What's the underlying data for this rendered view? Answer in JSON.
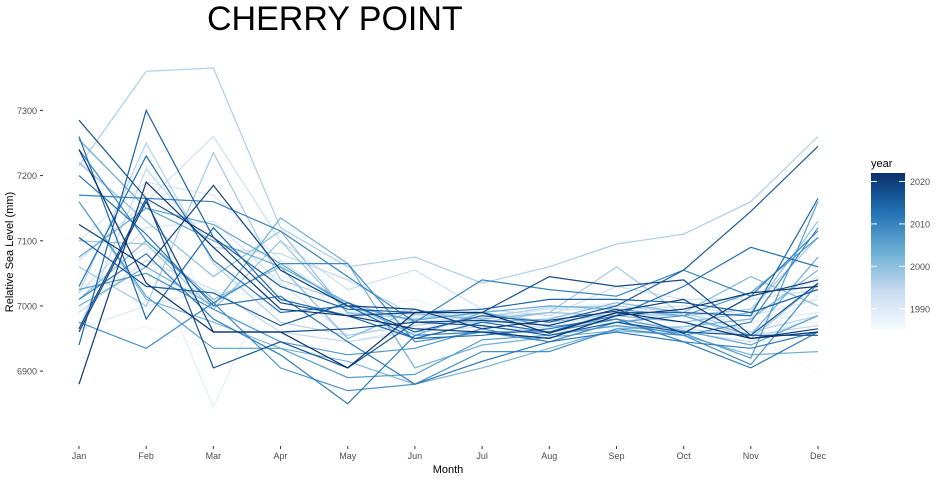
{
  "chart_data": {
    "type": "line",
    "title": "CHERRY POINT",
    "xlabel": "Month",
    "ylabel": "Relative Sea Level (mm)",
    "categories": [
      "Jan",
      "Feb",
      "Mar",
      "Apr",
      "May",
      "Jun",
      "Jul",
      "Aug",
      "Sep",
      "Oct",
      "Nov",
      "Dec"
    ],
    "yticks": [
      6900,
      7000,
      7100,
      7200,
      7300
    ],
    "ylim": [
      6825,
      7385
    ],
    "grid": false,
    "legend": {
      "title": "year",
      "type": "colorbar",
      "position": "right",
      "range": [
        1985,
        2022
      ],
      "ticks": [
        1990,
        2000,
        2010,
        2020
      ],
      "color_low": "#f7fbff",
      "color_high": "#08306b"
    },
    "series": [
      {
        "year": 1986,
        "values": [
          6948,
          6968,
          6932,
          6990,
          6975,
          6985,
          6968,
          6968,
          6975,
          6962,
          6958,
          6895
        ]
      },
      {
        "year": 1987,
        "values": [
          6995,
          7245,
          6958,
          7135,
          6992,
          7010,
          6975,
          6990,
          7000,
          6985,
          6955,
          7005
        ]
      },
      {
        "year": 1988,
        "values": [
          7050,
          7030,
          7025,
          7010,
          6985,
          6975,
          6965,
          6978,
          6985,
          6975,
          6968,
          6975
        ]
      },
      {
        "year": 1989,
        "values": [
          7022,
          7090,
          6845,
          7070,
          6982,
          6995,
          6980,
          6995,
          7005,
          6995,
          6960,
          7015
        ]
      },
      {
        "year": 1990,
        "values": [
          6965,
          7000,
          7025,
          6960,
          6945,
          6965,
          6975,
          6972,
          6985,
          6985,
          6975,
          6990
        ]
      },
      {
        "year": 1991,
        "values": [
          7100,
          7190,
          7170,
          7070,
          7000,
          6960,
          6995,
          6985,
          6975,
          6990,
          6985,
          7045
        ]
      },
      {
        "year": 1992,
        "values": [
          7020,
          7120,
          7130,
          7035,
          6955,
          6975,
          6985,
          6995,
          6995,
          7000,
          6985,
          7010
        ]
      },
      {
        "year": 1993,
        "values": [
          7070,
          7160,
          7260,
          7100,
          7025,
          7055,
          6995,
          6985,
          7030,
          7010,
          7010,
          7025
        ]
      },
      {
        "year": 1994,
        "values": [
          6990,
          7070,
          7025,
          6960,
          6945,
          6960,
          6968,
          6960,
          6968,
          6960,
          6945,
          6985
        ]
      },
      {
        "year": 1995,
        "values": [
          6965,
          7210,
          7090,
          7080,
          7040,
          6985,
          6980,
          6965,
          6980,
          6965,
          6955,
          6970
        ]
      },
      {
        "year": 1996,
        "values": [
          7020,
          7250,
          7065,
          6975,
          6955,
          6970,
          6982,
          6998,
          7000,
          6990,
          6960,
          6985
        ]
      },
      {
        "year": 1997,
        "values": [
          7215,
          7360,
          7365,
          7120,
          7060,
          7075,
          7035,
          7060,
          7095,
          7110,
          7160,
          7260
        ]
      },
      {
        "year": 1998,
        "values": [
          7060,
          7000,
          7235,
          7040,
          7005,
          6975,
          6975,
          6990,
          7060,
          6985,
          6995,
          7105
        ]
      },
      {
        "year": 1999,
        "values": [
          7100,
          7095,
          6995,
          7100,
          6990,
          6980,
          6990,
          6975,
          6988,
          6985,
          6950,
          7035
        ]
      },
      {
        "year": 2000,
        "values": [
          7220,
          7130,
          7045,
          7115,
          6988,
          6988,
          6980,
          6990,
          6985,
          6975,
          6990,
          7130
        ]
      },
      {
        "year": 2001,
        "values": [
          7010,
          7100,
          7010,
          7060,
          6950,
          6995,
          6975,
          6980,
          7005,
          6990,
          7045,
          7000
        ]
      },
      {
        "year": 2002,
        "values": [
          7160,
          7010,
          6975,
          6935,
          6915,
          6880,
          6905,
          6935,
          6965,
          6968,
          6980,
          7055
        ]
      },
      {
        "year": 2003,
        "values": [
          7000,
          7060,
          7000,
          7135,
          7065,
          6905,
          6940,
          6952,
          6962,
          6955,
          6925,
          6930
        ]
      },
      {
        "year": 2004,
        "values": [
          7255,
          7150,
          7100,
          7060,
          7005,
          6955,
          6990,
          7000,
          6995,
          6985,
          6955,
          7075
        ]
      },
      {
        "year": 2005,
        "values": [
          7075,
          7150,
          7125,
          7065,
          7000,
          6978,
          6990,
          6968,
          6980,
          6962,
          6940,
          6985
        ]
      },
      {
        "year": 2006,
        "values": [
          7160,
          7015,
          6935,
          6935,
          6890,
          6895,
          6948,
          6955,
          6970,
          6958,
          6920,
          7160
        ]
      },
      {
        "year": 2007,
        "values": [
          7025,
          7050,
          6995,
          6945,
          6925,
          6935,
          6965,
          6945,
          6975,
          6985,
          7020,
          7105
        ]
      },
      {
        "year": 2008,
        "values": [
          6975,
          6935,
          7005,
          6905,
          6870,
          6880,
          6930,
          6930,
          6965,
          6955,
          6910,
          7035
        ]
      },
      {
        "year": 2009,
        "values": [
          7240,
          7100,
          7005,
          7065,
          7065,
          6945,
          6960,
          6945,
          6975,
          6955,
          6975,
          7120
        ]
      },
      {
        "year": 2010,
        "values": [
          7170,
          7165,
          7160,
          7115,
          7045,
          6975,
          7040,
          7025,
          7015,
          7055,
          7015,
          7115
        ]
      },
      {
        "year": 2011,
        "values": [
          7010,
          7080,
          6980,
          6925,
          6850,
          6955,
          6960,
          6960,
          6980,
          6945,
          6935,
          6960
        ]
      },
      {
        "year": 2012,
        "values": [
          7200,
          7110,
          7000,
          7015,
          6945,
          6880,
          6915,
          6945,
          6960,
          6945,
          6905,
          6960
        ]
      },
      {
        "year": 2013,
        "values": [
          7030,
          7230,
          7070,
          6990,
          7000,
          6950,
          6955,
          6965,
          6985,
          7030,
          7090,
          7060
        ]
      },
      {
        "year": 2014,
        "values": [
          7260,
          6980,
          7120,
          7010,
          6985,
          6950,
          6975,
          6960,
          6990,
          6990,
          6985,
          7165
        ]
      },
      {
        "year": 2015,
        "values": [
          6940,
          7300,
          7105,
          7030,
          6995,
          6990,
          6995,
          7010,
          7010,
          7005,
          6990,
          7025
        ]
      },
      {
        "year": 2016,
        "values": [
          7105,
          7030,
          7020,
          6970,
          7005,
          6960,
          6985,
          6975,
          7000,
          7055,
          7145,
          7245
        ]
      },
      {
        "year": 2017,
        "values": [
          7285,
          7165,
          6905,
          6945,
          6905,
          6975,
          6970,
          6955,
          6975,
          6960,
          6955,
          7035
        ]
      },
      {
        "year": 2018,
        "values": [
          6965,
          7165,
          7105,
          7005,
          6985,
          6990,
          6990,
          7045,
          7030,
          7040,
          6955,
          6955
        ]
      },
      {
        "year": 2019,
        "values": [
          6960,
          7160,
          6960,
          6960,
          6965,
          6975,
          6978,
          6970,
          6995,
          6958,
          7015,
          7040
        ]
      },
      {
        "year": 2020,
        "values": [
          7125,
          7060,
          7185,
          7055,
          7000,
          6995,
          6965,
          6978,
          6992,
          7010,
          6950,
          6965
        ]
      },
      {
        "year": 2021,
        "values": [
          6880,
          7190,
          7090,
          6995,
          6985,
          6965,
          6960,
          6950,
          6985,
          6995,
          7020,
          7030
        ]
      },
      {
        "year": 2022,
        "values": [
          7240,
          7035,
          6960,
          6960,
          6905,
          6990,
          6990,
          6958,
          6990,
          6975,
          6950,
          6960
        ]
      }
    ]
  }
}
